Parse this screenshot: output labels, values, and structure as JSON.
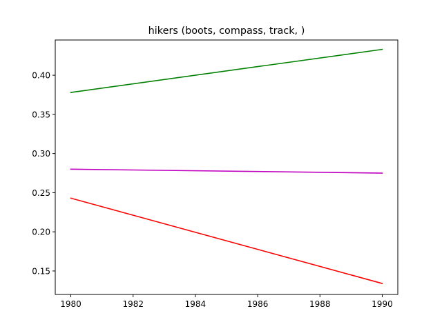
{
  "chart_data": {
    "type": "line",
    "title": "hikers (boots, compass, track, )",
    "xlabel": "",
    "ylabel": "",
    "xlim": [
      1979.5,
      1990.5
    ],
    "ylim": [
      0.12,
      0.445
    ],
    "xticks": [
      1980,
      1982,
      1984,
      1986,
      1988,
      1990
    ],
    "yticks": [
      0.15,
      0.2,
      0.25,
      0.3,
      0.35,
      0.4
    ],
    "ytick_labels": [
      "0.15",
      "0.20",
      "0.25",
      "0.30",
      "0.35",
      "0.40"
    ],
    "grid": false,
    "series": [
      {
        "color": "#008000",
        "x": [
          1980,
          1990
        ],
        "y": [
          0.378,
          0.433
        ]
      },
      {
        "color": "#bf00bf",
        "x": [
          1980,
          1990
        ],
        "y": [
          0.28,
          0.275
        ]
      },
      {
        "color": "#ff0000",
        "x": [
          1980,
          1990
        ],
        "y": [
          0.243,
          0.134
        ]
      }
    ]
  }
}
